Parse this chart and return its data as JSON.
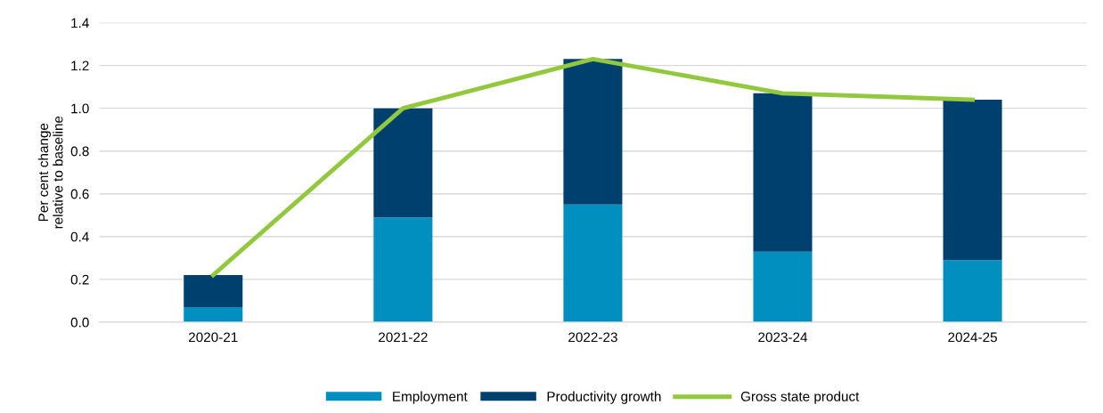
{
  "chart_data": {
    "type": "bar",
    "stacked": true,
    "ylabel": "Per cent change\nrelative to baseline",
    "categories": [
      "2020-21",
      "2021-22",
      "2022-23",
      "2023-24",
      "2024-25"
    ],
    "series": [
      {
        "name": "Employment",
        "color": "#008fbe",
        "values": [
          0.07,
          0.49,
          0.55,
          0.33,
          0.29
        ]
      },
      {
        "name": "Productivity growth",
        "color": "#00406e",
        "values": [
          0.15,
          0.51,
          0.68,
          0.74,
          0.75
        ]
      },
      {
        "name": "Gross state product",
        "type": "line",
        "color": "#92c83e",
        "values": [
          0.22,
          1.0,
          1.23,
          1.07,
          1.04
        ]
      }
    ],
    "ylim": [
      0,
      1.4
    ],
    "yticks": [
      {
        "value": 0,
        "label": "0.0"
      },
      {
        "value": 0.2,
        "label": "0.2"
      },
      {
        "value": 0.4,
        "label": "0.4"
      },
      {
        "value": 0.6,
        "label": "0.6"
      },
      {
        "value": 0.8,
        "label": "0.8"
      },
      {
        "value": 1.0,
        "label": "1.0"
      },
      {
        "value": 1.2,
        "label": "1.2"
      },
      {
        "value": 1.4,
        "label": "1.4"
      }
    ],
    "grid": "y",
    "legend": "bottom"
  }
}
